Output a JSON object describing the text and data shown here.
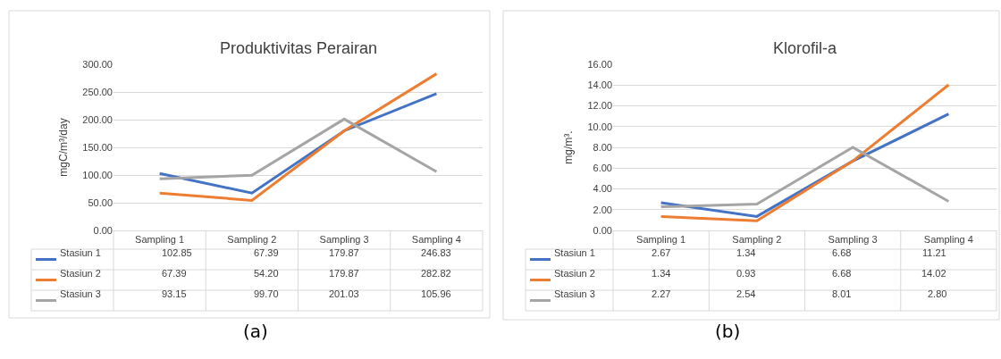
{
  "chart_data": [
    {
      "type": "line",
      "title": "Produktivitas Perairan",
      "ylabel": "mgC/m³/day",
      "categories": [
        "Sampling 1",
        "Sampling 2",
        "Sampling 3",
        "Sampling 4"
      ],
      "series": [
        {
          "name": "Stasiun 1",
          "color": "#4472c4",
          "values": [
            102.85,
            67.39,
            179.87,
            246.83
          ],
          "value_labels": [
            "102.85",
            "67.39",
            "179.87",
            "246.83"
          ]
        },
        {
          "name": "Stasiun 2",
          "color": "#ed7d31",
          "values": [
            67.39,
            54.2,
            179.87,
            282.82
          ],
          "value_labels": [
            "67.39",
            "54.20",
            "179.87",
            "282.82"
          ]
        },
        {
          "name": "Stasiun 3",
          "color": "#a5a5a5",
          "values": [
            93.15,
            99.7,
            201.03,
            105.96
          ],
          "value_labels": [
            "93.15",
            "99.70",
            "201.03",
            "105.96"
          ]
        }
      ],
      "ylim": [
        0,
        300
      ],
      "yticks": [
        {
          "value": 0,
          "label": "0.00"
        },
        {
          "value": 50,
          "label": "50.00"
        },
        {
          "value": 100,
          "label": "100.00"
        },
        {
          "value": 150,
          "label": "150.00"
        },
        {
          "value": 200,
          "label": "200.00"
        },
        {
          "value": 250,
          "label": "250.00"
        },
        {
          "value": 300,
          "label": "300.00"
        }
      ],
      "grid": "y",
      "legend": "bottom left",
      "annotations": [
        "(a)"
      ]
    },
    {
      "type": "line",
      "title": "Klorofil-a",
      "ylabel": "mg/m³.",
      "categories": [
        "Sampling 1",
        "Sampling 2",
        "Sampling 3",
        "Sampling 4"
      ],
      "series": [
        {
          "name": "Stasiun 1",
          "color": "#4472c4",
          "values": [
            2.67,
            1.34,
            6.68,
            11.21
          ],
          "value_labels": [
            "2.67",
            "1.34",
            "6.68",
            "11.21"
          ]
        },
        {
          "name": "Stasiun 2",
          "color": "#ed7d31",
          "values": [
            1.34,
            0.93,
            6.68,
            14.02
          ],
          "value_labels": [
            "1.34",
            "0.93",
            "6.68",
            "14.02"
          ]
        },
        {
          "name": "Stasiun 3",
          "color": "#a5a5a5",
          "values": [
            2.27,
            2.54,
            8.01,
            2.8
          ],
          "value_labels": [
            "2.27",
            "2.54",
            "8.01",
            "2.80"
          ]
        }
      ],
      "ylim": [
        0,
        16
      ],
      "yticks": [
        {
          "value": 0,
          "label": "0.00"
        },
        {
          "value": 2,
          "label": "2.00"
        },
        {
          "value": 4,
          "label": "4.00"
        },
        {
          "value": 6,
          "label": "6.00"
        },
        {
          "value": 8,
          "label": "8.00"
        },
        {
          "value": 10,
          "label": "10.00"
        },
        {
          "value": 12,
          "label": "12.00"
        },
        {
          "value": 14,
          "label": "14.00"
        },
        {
          "value": 16,
          "label": "16.00"
        }
      ],
      "grid": "y",
      "legend": "bottom left",
      "annotations": [
        "(b)"
      ]
    }
  ]
}
